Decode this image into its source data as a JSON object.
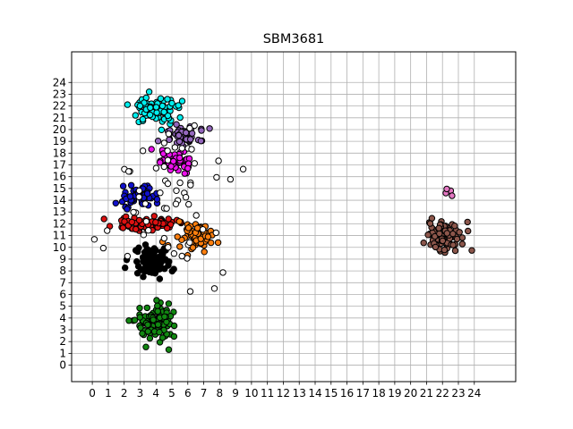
{
  "chart_data": {
    "type": "scatter",
    "title": "SBM3681",
    "xlabel": "",
    "ylabel": "",
    "xlim": [
      -1.3,
      26.6
    ],
    "ylim": [
      -1.4,
      26.6
    ],
    "xticks": [
      0,
      1,
      2,
      3,
      4,
      5,
      6,
      7,
      8,
      9,
      10,
      11,
      12,
      13,
      14,
      15,
      16,
      17,
      18,
      19,
      20,
      21,
      22,
      23,
      24
    ],
    "yticks": [
      0,
      1,
      2,
      3,
      4,
      5,
      6,
      7,
      8,
      9,
      10,
      11,
      12,
      13,
      14,
      15,
      16,
      17,
      18,
      19,
      20,
      21,
      22,
      23,
      24
    ],
    "grid": true,
    "legend": "none",
    "clusters": [
      {
        "color": "#00eeee",
        "center": [
          4.0,
          21.8
        ],
        "spread": [
          1.2,
          1.1
        ],
        "n": 90
      },
      {
        "color": "#9467bd",
        "center": [
          5.7,
          19.5
        ],
        "spread": [
          1.0,
          0.7
        ],
        "n": 50
      },
      {
        "color": "#ee11ee",
        "center": [
          5.0,
          17.3
        ],
        "spread": [
          1.0,
          0.8
        ],
        "n": 60
      },
      {
        "color": "#1111cc",
        "center": [
          2.8,
          14.3
        ],
        "spread": [
          1.0,
          0.8
        ],
        "n": 55
      },
      {
        "color": "#dd1111",
        "center": [
          3.4,
          12.1
        ],
        "spread": [
          1.5,
          0.6
        ],
        "n": 75
      },
      {
        "color": "#ff7f0e",
        "center": [
          6.4,
          11.0
        ],
        "spread": [
          1.0,
          1.0
        ],
        "n": 70
      },
      {
        "color": "#000000",
        "center": [
          3.8,
          8.7
        ],
        "spread": [
          0.9,
          1.0
        ],
        "n": 120
      },
      {
        "color": "#118811",
        "center": [
          4.0,
          3.6
        ],
        "spread": [
          1.0,
          1.4
        ],
        "n": 110
      },
      {
        "color": "#8c564b",
        "center": [
          22.2,
          11.0
        ],
        "spread": [
          1.1,
          1.1
        ],
        "n": 80
      },
      {
        "color": "#e377c2",
        "center": [
          22.2,
          14.6
        ],
        "spread": [
          0.4,
          0.4
        ],
        "n": 4
      },
      {
        "color": "#ffffff",
        "center": [
          4.5,
          14.0
        ],
        "spread": [
          3.0,
          6.5
        ],
        "n": 60
      }
    ]
  }
}
